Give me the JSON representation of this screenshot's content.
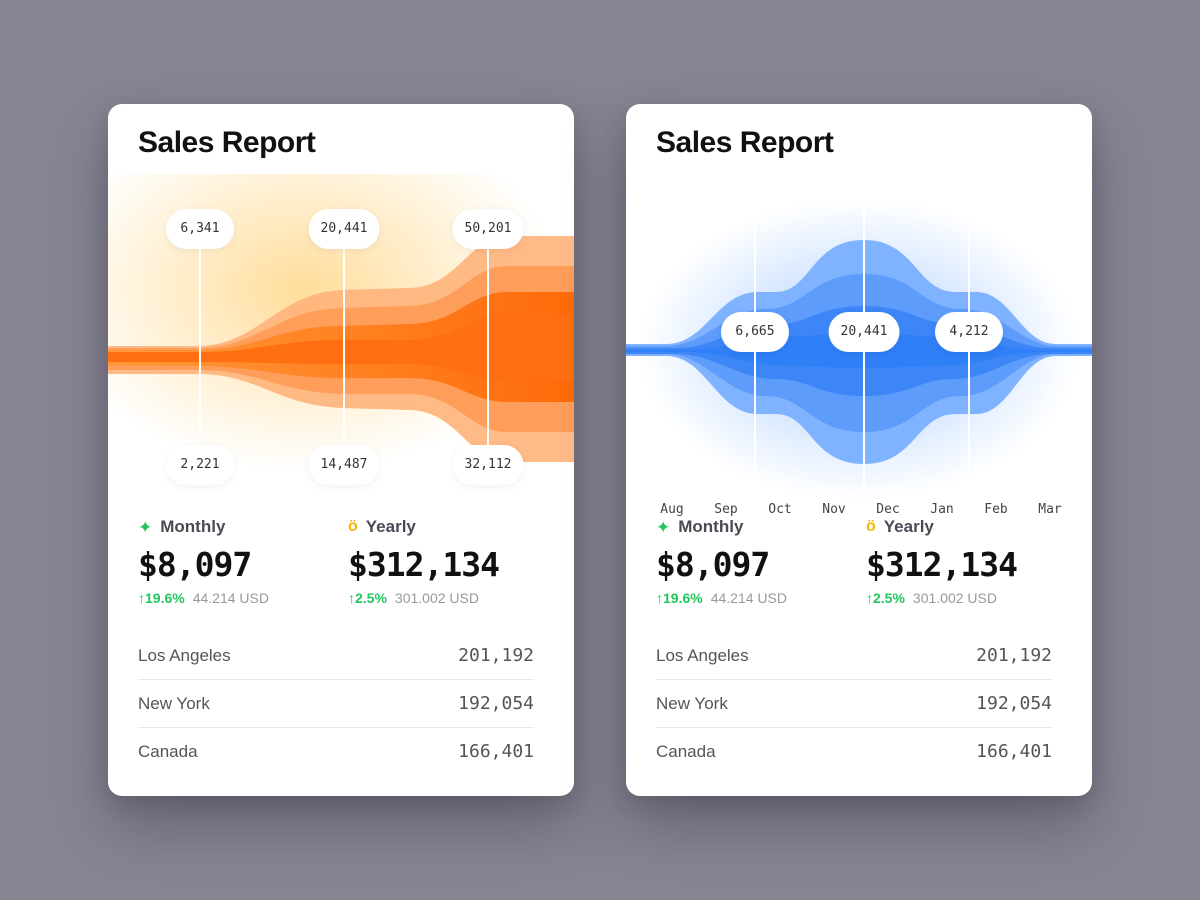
{
  "cards": [
    {
      "title": "Sales Report",
      "theme": {
        "accent": "#ff7a1a",
        "glow": "#ffd27a"
      },
      "markers": [
        {
          "top": "6,341",
          "bottom": "2,221"
        },
        {
          "top": "20,441",
          "bottom": "14,487"
        },
        {
          "top": "50,201",
          "bottom": "32,112"
        }
      ],
      "stats": {
        "monthly": {
          "label": "Monthly",
          "icon": "sparkle-icon",
          "value": "$8,097",
          "change": "↑19.6%",
          "sub": "44.214 USD"
        },
        "yearly": {
          "label": "Yearly",
          "icon": "medal-icon",
          "value": "$312,134",
          "change": "↑2.5%",
          "sub": "301.002 USD"
        }
      },
      "regions": [
        {
          "name": "Los Angeles",
          "value": "201,192"
        },
        {
          "name": "New York",
          "value": "192,054"
        },
        {
          "name": "Canada",
          "value": "166,401"
        }
      ]
    },
    {
      "title": "Sales Report",
      "theme": {
        "accent": "#2f7ff7",
        "glow": "#9cc4ff"
      },
      "markers": [
        {
          "value": "6,665"
        },
        {
          "value": "20,441"
        },
        {
          "value": "4,212"
        }
      ],
      "months": [
        "Aug",
        "Sep",
        "Oct",
        "Nov",
        "Dec",
        "Jan",
        "Feb",
        "Mar"
      ],
      "stats": {
        "monthly": {
          "label": "Monthly",
          "icon": "sparkle-icon",
          "value": "$8,097",
          "change": "↑19.6%",
          "sub": "44.214 USD"
        },
        "yearly": {
          "label": "Yearly",
          "icon": "medal-icon",
          "value": "$312,134",
          "change": "↑2.5%",
          "sub": "301.002 USD"
        }
      },
      "regions": [
        {
          "name": "Los Angeles",
          "value": "201,192"
        },
        {
          "name": "New York",
          "value": "192,054"
        },
        {
          "name": "Canada",
          "value": "166,401"
        }
      ]
    }
  ]
}
